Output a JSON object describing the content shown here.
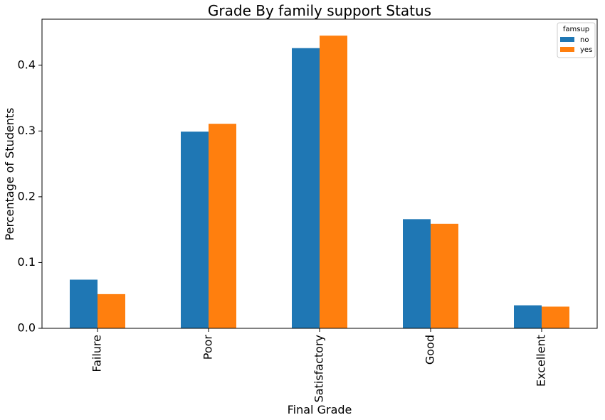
{
  "chart_data": {
    "type": "bar",
    "title": "Grade By family support Status",
    "xlabel": "Final Grade",
    "ylabel": "Percentage of Students",
    "categories": [
      "Failure",
      "Poor",
      "Satisfactory",
      "Good",
      "Excellent"
    ],
    "series": [
      {
        "name": "no",
        "values": [
          0.074,
          0.299,
          0.426,
          0.166,
          0.035
        ],
        "color": "#1f77b4"
      },
      {
        "name": "yes",
        "values": [
          0.052,
          0.311,
          0.445,
          0.159,
          0.033
        ],
        "color": "#ff7f0e"
      }
    ],
    "ylim": [
      0,
      0.47
    ],
    "yticks": [
      "0.0",
      "0.1",
      "0.2",
      "0.3",
      "0.4"
    ],
    "legend": {
      "title": "famsup",
      "position": "top-right"
    },
    "grid": false
  }
}
